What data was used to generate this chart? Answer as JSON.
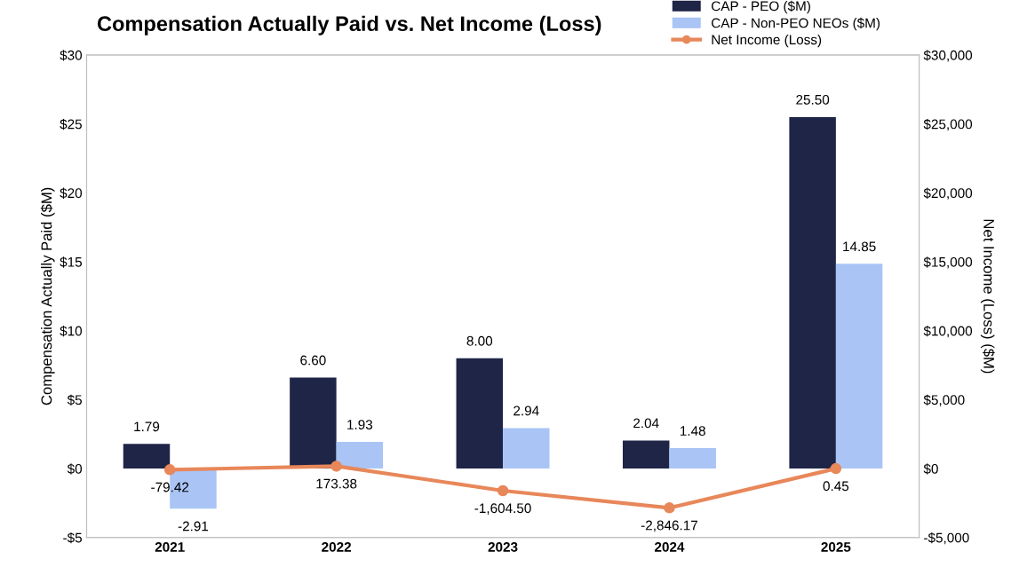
{
  "chart_data": {
    "type": "bar",
    "title": "Compensation Actually Paid vs. Net Income (Loss)",
    "ylabel": "Compensation Actually Paid ($M)",
    "y2label": "Net Income (Loss) ($M)",
    "categories": [
      "2021",
      "2022",
      "2023",
      "2024",
      "2025"
    ],
    "series": [
      {
        "name": "CAP - PEO ($M)",
        "color": "#1f2547",
        "values": [
          1.79,
          6.6,
          8.0,
          2.04,
          25.5
        ],
        "value_labels": [
          "1.79",
          "6.60",
          "8.00",
          "2.04",
          "25.50"
        ]
      },
      {
        "name": "CAP - Non-PEO NEOs ($M)",
        "color": "#a9c4f5",
        "values": [
          -2.91,
          1.93,
          2.94,
          1.48,
          14.85
        ],
        "value_labels": [
          "-2.91",
          "1.93",
          "2.94",
          "1.48",
          "14.85"
        ]
      },
      {
        "name": "Net Income (Loss)",
        "type": "line",
        "axis": "y2",
        "color": "#e8875a",
        "marker": "circle",
        "values": [
          -79.42,
          173.38,
          -1604.5,
          -2846.17,
          0.45
        ],
        "value_labels": [
          "-79.42",
          "173.38",
          "-1,604.50",
          "-2,846.17",
          "0.45"
        ]
      }
    ],
    "ylim": [
      -5,
      30
    ],
    "yticks": [
      {
        "value": -5,
        "label": "-$5"
      },
      {
        "value": 0,
        "label": "$0"
      },
      {
        "value": 5,
        "label": "$5"
      },
      {
        "value": 10,
        "label": "$10"
      },
      {
        "value": 15,
        "label": "$15"
      },
      {
        "value": 20,
        "label": "$20"
      },
      {
        "value": 25,
        "label": "$25"
      },
      {
        "value": 30,
        "label": "$30"
      }
    ],
    "y2lim": [
      -5000,
      30000
    ],
    "y2ticks": [
      {
        "value": -5000,
        "label": "-$5,000"
      },
      {
        "value": 0,
        "label": "$0"
      },
      {
        "value": 5000,
        "label": "$5,000"
      },
      {
        "value": 10000,
        "label": "$10,000"
      },
      {
        "value": 15000,
        "label": "$15,000"
      },
      {
        "value": 20000,
        "label": "$20,000"
      },
      {
        "value": 25000,
        "label": "$25,000"
      },
      {
        "value": 30000,
        "label": "$30,000"
      }
    ],
    "grid": false,
    "legend": "top right"
  }
}
